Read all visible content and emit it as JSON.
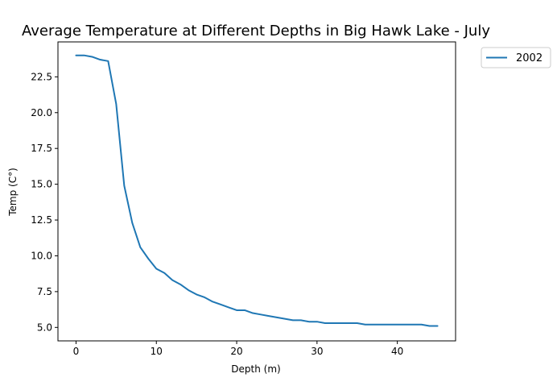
{
  "chart_data": {
    "type": "line",
    "title": "Average Temperature at Different Depths in Big Hawk Lake - July",
    "xlabel": "Depth (m)",
    "ylabel": "Temp (C°)",
    "xlim": [
      -2.25,
      47.25
    ],
    "ylim": [
      4.06,
      24.94
    ],
    "xticks": [
      0,
      10,
      20,
      30,
      40
    ],
    "yticks": [
      5.0,
      7.5,
      10.0,
      12.5,
      15.0,
      17.5,
      20.0,
      22.5
    ],
    "xtick_labels": [
      "0",
      "10",
      "20",
      "30",
      "40"
    ],
    "ytick_labels": [
      "5.0",
      "7.5",
      "10.0",
      "12.5",
      "15.0",
      "17.5",
      "20.0",
      "22.5"
    ],
    "grid": false,
    "legend_position": "outside-top-right",
    "series": [
      {
        "name": "2002",
        "color": "#1f77b4",
        "x": [
          0,
          1,
          2,
          3,
          4,
          5,
          6,
          7,
          8,
          9,
          10,
          11,
          12,
          13,
          14,
          15,
          16,
          17,
          18,
          19,
          20,
          21,
          22,
          23,
          24,
          25,
          26,
          27,
          28,
          29,
          30,
          31,
          32,
          33,
          34,
          35,
          36,
          37,
          38,
          39,
          40,
          41,
          42,
          43,
          44,
          45
        ],
        "y": [
          24.0,
          24.0,
          23.9,
          23.7,
          23.6,
          20.6,
          14.9,
          12.3,
          10.6,
          9.8,
          9.1,
          8.8,
          8.3,
          8.0,
          7.6,
          7.3,
          7.1,
          6.8,
          6.6,
          6.4,
          6.2,
          6.2,
          6.0,
          5.9,
          5.8,
          5.7,
          5.6,
          5.5,
          5.5,
          5.4,
          5.4,
          5.3,
          5.3,
          5.3,
          5.3,
          5.3,
          5.2,
          5.2,
          5.2,
          5.2,
          5.2,
          5.2,
          5.2,
          5.2,
          5.1,
          5.1
        ]
      }
    ]
  }
}
